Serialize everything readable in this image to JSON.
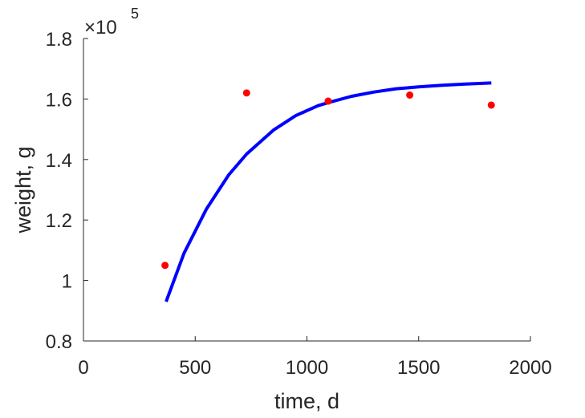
{
  "chart_data": {
    "type": "scatter",
    "xlabel": "time, d",
    "ylabel": "weight, g",
    "y_multiplier": "×10",
    "y_exponent": "5",
    "xlim": [
      0,
      2000
    ],
    "ylim": [
      0.8,
      1.8
    ],
    "xticks": [
      0,
      500,
      1000,
      1500,
      2000
    ],
    "xtick_labels": [
      "0",
      "500",
      "1000",
      "1500",
      "2000"
    ],
    "yticks": [
      0.8,
      1.0,
      1.2,
      1.4,
      1.6,
      1.8
    ],
    "ytick_labels": [
      "0.8",
      "1",
      "1.2",
      "1.4",
      "1.6",
      "1.8"
    ],
    "grid": false,
    "series": [
      {
        "kind": "scatter",
        "color": "#ff0000",
        "x": [
          365,
          730,
          1095,
          1460,
          1825
        ],
        "y": [
          1.05,
          1.62,
          1.593,
          1.613,
          1.58
        ]
      },
      {
        "kind": "line",
        "color": "#0000ff",
        "x": [
          370,
          450,
          550,
          650,
          730,
          850,
          950,
          1050,
          1095,
          1200,
          1300,
          1400,
          1500,
          1600,
          1700,
          1825
        ],
        "y": [
          0.93,
          1.09,
          1.236,
          1.349,
          1.418,
          1.497,
          1.545,
          1.578,
          1.588,
          1.609,
          1.623,
          1.634,
          1.64,
          1.645,
          1.649,
          1.653
        ]
      }
    ]
  }
}
